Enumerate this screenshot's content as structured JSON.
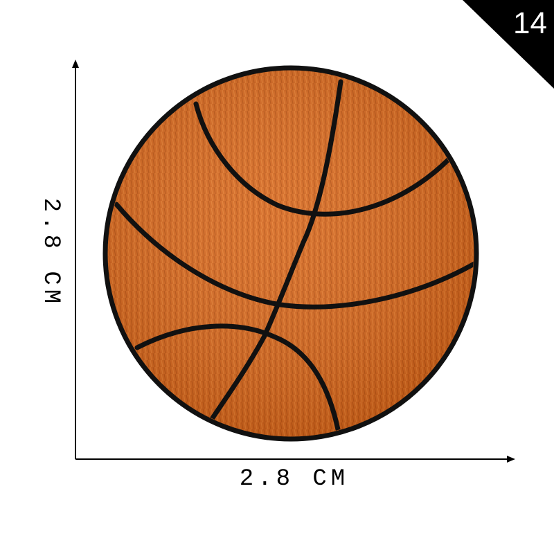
{
  "badge": {
    "number": "14",
    "background": "#000000",
    "text_color": "#ffffff"
  },
  "dimensions": {
    "width_label": "2.8 CM",
    "height_label": "2.8 CM",
    "line_color": "#000000"
  },
  "patch": {
    "subject": "basketball",
    "fill_color": "#d9681c",
    "shade_color": "#b9520f",
    "seam_color": "#111111"
  }
}
